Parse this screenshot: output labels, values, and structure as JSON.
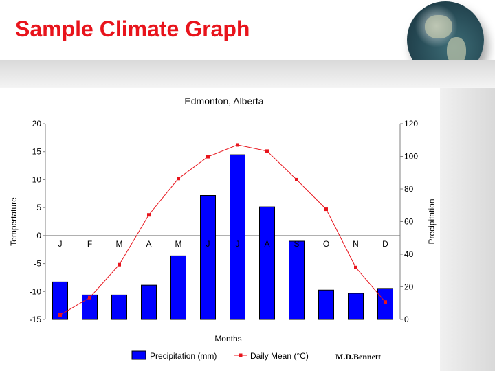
{
  "slide": {
    "title": "Sample Climate Graph",
    "credit": "M.D.Bennett"
  },
  "colors": {
    "title": "#e8141c",
    "bars": "#0000ff",
    "line": "#e8141c"
  },
  "chart_data": {
    "type": "bar",
    "title": "Edmonton, Alberta",
    "xlabel": "Months",
    "ylabel": "Tempertature",
    "y2label": "Precipitation",
    "categories": [
      "J",
      "F",
      "M",
      "A",
      "M",
      "J",
      "J",
      "A",
      "S",
      "O",
      "N",
      "D"
    ],
    "ylim": [
      -15,
      20
    ],
    "yticks": [
      -15,
      -10,
      -5,
      0,
      5,
      10,
      15,
      20
    ],
    "y2lim": [
      0,
      120
    ],
    "y2ticks": [
      0,
      20,
      40,
      60,
      80,
      100,
      120
    ],
    "series": [
      {
        "name": "Precipitation (mm)",
        "type": "bar",
        "axis": "right",
        "values": [
          23,
          15,
          15,
          21,
          39,
          76,
          101,
          69,
          48,
          18,
          16,
          19
        ]
      },
      {
        "name": "Daily Mean (°C)",
        "type": "line",
        "axis": "left",
        "values": [
          -14.2,
          -11.1,
          -5.2,
          3.7,
          10.2,
          14.1,
          16.2,
          15.1,
          10.0,
          4.7,
          -5.7,
          -11.9
        ]
      }
    ],
    "legend": "bottom",
    "grid": false
  }
}
